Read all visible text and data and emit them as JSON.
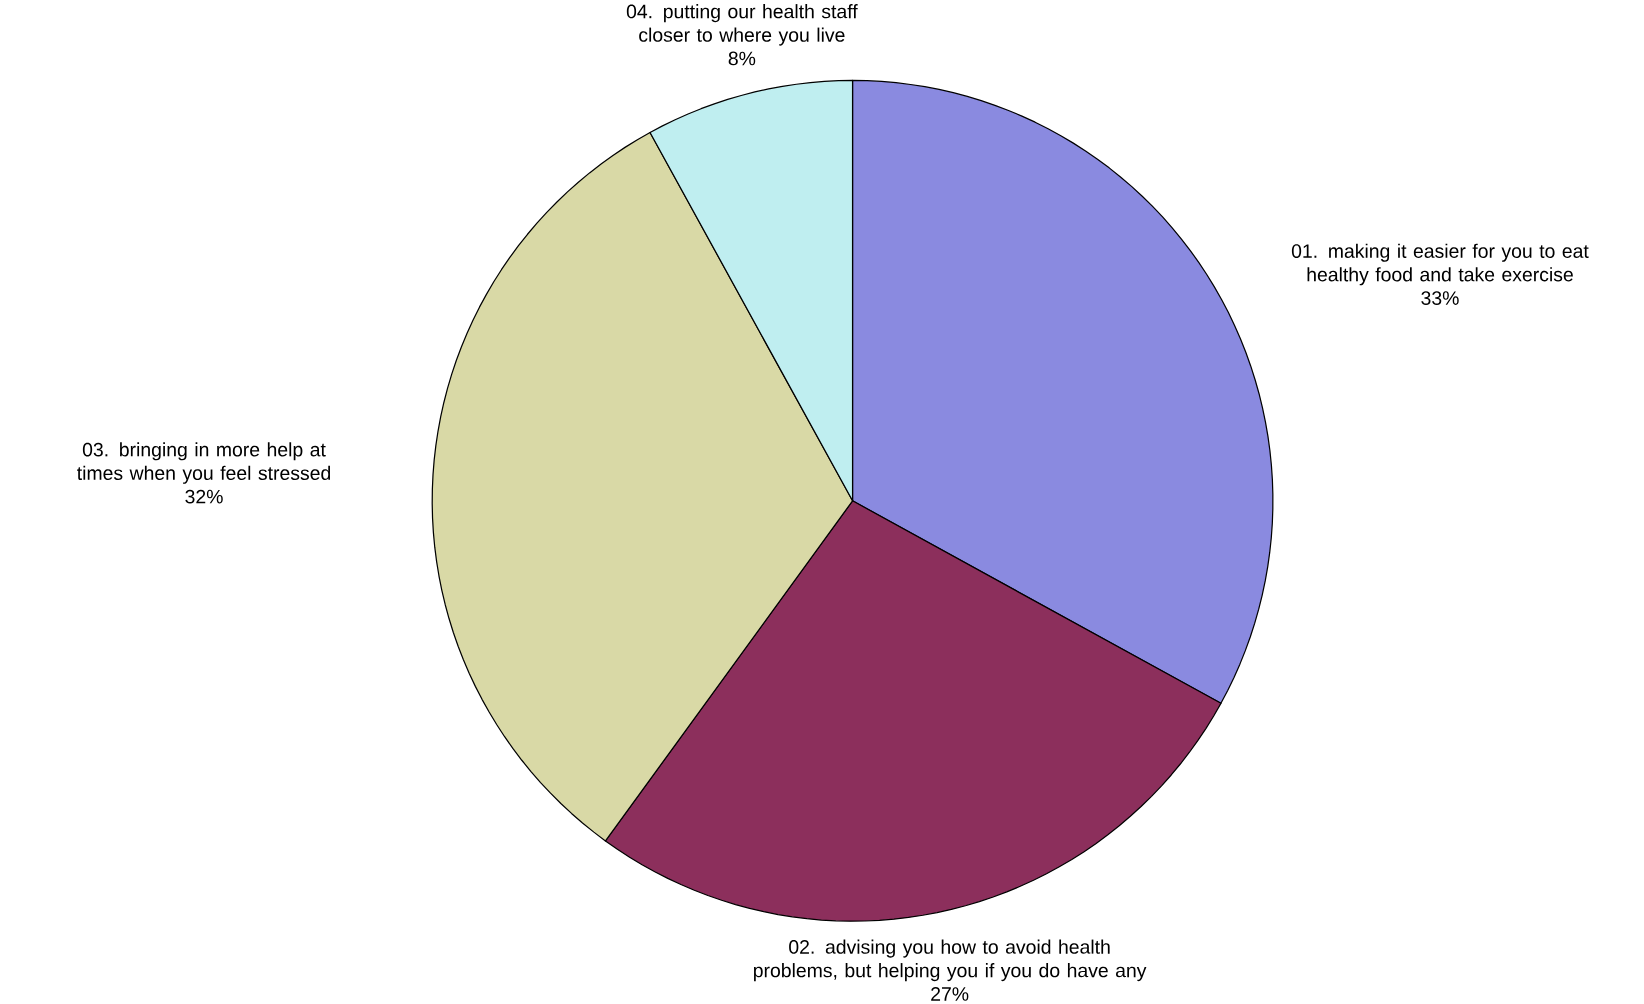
{
  "chart_data": {
    "type": "pie",
    "categories": [
      "01. making it easier for you to eat healthy food and take exercise",
      "02. advising you how to avoid health problems, but helping you if you do have any",
      "03. bringing in more help at times when you feel stressed",
      "04. putting our health staff closer to where you live"
    ],
    "values": [
      33,
      27,
      32,
      8
    ],
    "value_labels": [
      "33%",
      "27%",
      "32%",
      "8%"
    ],
    "colors": [
      "#8a8ae0",
      "#8c2f5c",
      "#d9d9a6",
      "#bfeef0"
    ]
  }
}
